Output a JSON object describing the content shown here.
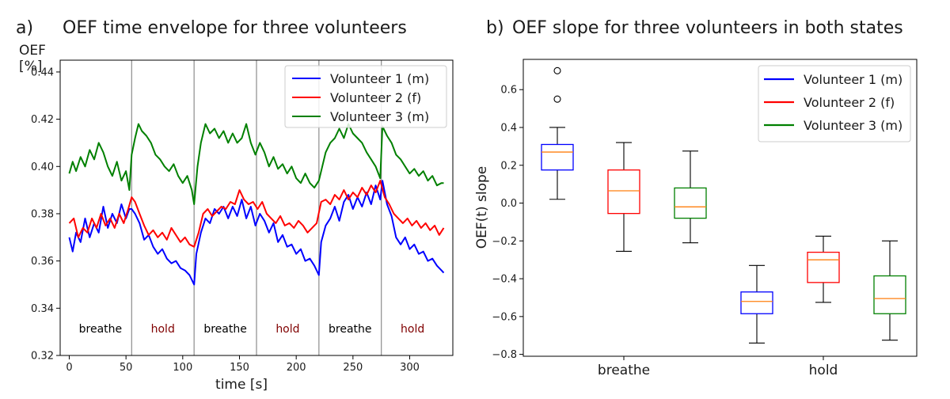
{
  "chart_data": [
    {
      "type": "line",
      "panel_label": "a)",
      "title": "OEF time envelope for three volunteers",
      "xlabel": "time [s]",
      "ylabel": [
        "OEF",
        "[%]"
      ],
      "xlim": [
        -8,
        338
      ],
      "ylim": [
        0.32,
        0.445
      ],
      "xticks": [
        0,
        50,
        100,
        150,
        200,
        250,
        300
      ],
      "yticks": [
        "0.32",
        "0.34",
        "0.36",
        "0.38",
        "0.40",
        "0.42",
        "0.44"
      ],
      "legend_position": "top-right",
      "phase_boundaries": [
        55,
        110,
        165,
        220,
        275
      ],
      "phases": [
        {
          "label": "breathe",
          "x": 27.5,
          "color": "#000000"
        },
        {
          "label": "hold",
          "x": 82.5,
          "color": "#800000"
        },
        {
          "label": "breathe",
          "x": 137.5,
          "color": "#000000"
        },
        {
          "label": "hold",
          "x": 192.5,
          "color": "#800000"
        },
        {
          "label": "breathe",
          "x": 247.5,
          "color": "#000000"
        },
        {
          "label": "hold",
          "x": 302.5,
          "color": "#800000"
        }
      ],
      "series": [
        {
          "name": "Volunteer 1 (m)",
          "color": "#0000ff",
          "x": [
            0,
            3,
            6,
            10,
            14,
            18,
            22,
            26,
            30,
            34,
            38,
            42,
            46,
            50,
            53,
            55,
            58,
            62,
            66,
            70,
            74,
            78,
            82,
            86,
            90,
            94,
            98,
            102,
            106,
            110,
            112,
            116,
            120,
            124,
            128,
            132,
            136,
            140,
            144,
            148,
            152,
            156,
            160,
            164,
            168,
            172,
            176,
            180,
            184,
            188,
            192,
            196,
            200,
            204,
            208,
            212,
            216,
            220,
            222,
            226,
            230,
            234,
            238,
            242,
            246,
            250,
            254,
            258,
            262,
            266,
            270,
            274,
            276,
            280,
            284,
            288,
            292,
            296,
            300,
            304,
            308,
            312,
            316,
            320,
            324,
            328,
            330
          ],
          "y": [
            0.37,
            0.364,
            0.372,
            0.368,
            0.378,
            0.37,
            0.376,
            0.372,
            0.383,
            0.374,
            0.38,
            0.376,
            0.384,
            0.378,
            0.382,
            0.382,
            0.38,
            0.376,
            0.369,
            0.371,
            0.366,
            0.363,
            0.365,
            0.361,
            0.359,
            0.36,
            0.357,
            0.356,
            0.354,
            0.35,
            0.363,
            0.372,
            0.378,
            0.376,
            0.382,
            0.38,
            0.383,
            0.378,
            0.383,
            0.379,
            0.386,
            0.378,
            0.383,
            0.375,
            0.38,
            0.377,
            0.372,
            0.376,
            0.368,
            0.371,
            0.366,
            0.367,
            0.363,
            0.365,
            0.36,
            0.361,
            0.358,
            0.354,
            0.368,
            0.375,
            0.378,
            0.383,
            0.377,
            0.385,
            0.388,
            0.382,
            0.387,
            0.383,
            0.389,
            0.384,
            0.392,
            0.386,
            0.394,
            0.384,
            0.379,
            0.37,
            0.367,
            0.37,
            0.365,
            0.367,
            0.363,
            0.364,
            0.36,
            0.361,
            0.358,
            0.356,
            0.355
          ]
        },
        {
          "name": "Volunteer 2 (f)",
          "color": "#ff0000",
          "x": [
            0,
            4,
            8,
            12,
            16,
            20,
            24,
            28,
            32,
            36,
            40,
            44,
            48,
            52,
            55,
            58,
            62,
            66,
            70,
            74,
            78,
            82,
            86,
            90,
            94,
            98,
            102,
            106,
            110,
            114,
            118,
            122,
            126,
            130,
            134,
            138,
            142,
            146,
            150,
            154,
            158,
            162,
            166,
            170,
            174,
            178,
            182,
            186,
            190,
            194,
            198,
            202,
            206,
            210,
            214,
            218,
            222,
            226,
            230,
            234,
            238,
            242,
            246,
            250,
            254,
            258,
            262,
            266,
            270,
            274,
            278,
            282,
            286,
            290,
            294,
            298,
            302,
            306,
            310,
            314,
            318,
            322,
            326,
            330
          ],
          "y": [
            0.376,
            0.378,
            0.37,
            0.374,
            0.372,
            0.378,
            0.374,
            0.38,
            0.375,
            0.378,
            0.374,
            0.38,
            0.376,
            0.382,
            0.387,
            0.385,
            0.38,
            0.375,
            0.371,
            0.373,
            0.37,
            0.372,
            0.369,
            0.374,
            0.371,
            0.368,
            0.37,
            0.367,
            0.366,
            0.372,
            0.38,
            0.382,
            0.379,
            0.381,
            0.383,
            0.382,
            0.385,
            0.384,
            0.39,
            0.386,
            0.384,
            0.385,
            0.382,
            0.385,
            0.38,
            0.378,
            0.376,
            0.379,
            0.375,
            0.376,
            0.374,
            0.377,
            0.375,
            0.372,
            0.374,
            0.376,
            0.385,
            0.386,
            0.384,
            0.388,
            0.386,
            0.39,
            0.386,
            0.389,
            0.387,
            0.391,
            0.388,
            0.392,
            0.389,
            0.394,
            0.387,
            0.384,
            0.38,
            0.378,
            0.376,
            0.378,
            0.375,
            0.377,
            0.374,
            0.376,
            0.373,
            0.375,
            0.371,
            0.374
          ]
        },
        {
          "name": "Volunteer 3 (m)",
          "color": "#008000",
          "x": [
            0,
            3,
            6,
            10,
            14,
            18,
            22,
            26,
            30,
            34,
            38,
            42,
            46,
            50,
            53,
            55,
            58,
            61,
            64,
            68,
            72,
            76,
            80,
            84,
            88,
            92,
            96,
            100,
            104,
            108,
            110,
            113,
            116,
            120,
            124,
            128,
            132,
            136,
            140,
            144,
            148,
            152,
            156,
            160,
            164,
            168,
            172,
            176,
            180,
            184,
            188,
            192,
            196,
            200,
            204,
            208,
            212,
            216,
            220,
            223,
            226,
            230,
            234,
            238,
            242,
            246,
            250,
            254,
            258,
            262,
            266,
            270,
            274,
            276,
            280,
            284,
            288,
            292,
            296,
            300,
            304,
            308,
            312,
            316,
            320,
            324,
            328,
            330
          ],
          "y": [
            0.397,
            0.402,
            0.398,
            0.404,
            0.4,
            0.407,
            0.403,
            0.41,
            0.406,
            0.4,
            0.396,
            0.402,
            0.394,
            0.398,
            0.39,
            0.405,
            0.412,
            0.418,
            0.415,
            0.413,
            0.41,
            0.405,
            0.403,
            0.4,
            0.398,
            0.401,
            0.396,
            0.393,
            0.396,
            0.39,
            0.384,
            0.4,
            0.41,
            0.418,
            0.414,
            0.416,
            0.412,
            0.415,
            0.41,
            0.414,
            0.41,
            0.412,
            0.418,
            0.41,
            0.405,
            0.41,
            0.406,
            0.4,
            0.404,
            0.399,
            0.401,
            0.397,
            0.4,
            0.395,
            0.393,
            0.397,
            0.393,
            0.391,
            0.394,
            0.4,
            0.406,
            0.41,
            0.412,
            0.416,
            0.412,
            0.418,
            0.414,
            0.412,
            0.41,
            0.406,
            0.403,
            0.4,
            0.395,
            0.417,
            0.413,
            0.41,
            0.405,
            0.403,
            0.4,
            0.397,
            0.399,
            0.396,
            0.398,
            0.394,
            0.396,
            0.392,
            0.393,
            0.393
          ]
        }
      ]
    },
    {
      "type": "box",
      "panel_label": "b)",
      "title": "OEF slope for three volunteers in both states",
      "ylabel": "OEF(t) slope",
      "ylim": [
        -0.81,
        0.76
      ],
      "yticks": [
        "0.6",
        "0.4",
        "0.2",
        "0.0",
        "−0.2",
        "−0.4",
        "−0.6",
        "−0.8"
      ],
      "median_color": "#ff7f0e",
      "legend_position": "top-right",
      "groups": [
        {
          "label": "breathe",
          "color": "#000000"
        },
        {
          "label": "hold",
          "color": "#800000"
        }
      ],
      "boxes": [
        {
          "group": "breathe",
          "series": "Volunteer 1 (m)",
          "color": "#0000ff",
          "whislo": 0.02,
          "q1": 0.175,
          "median": 0.27,
          "q3": 0.31,
          "whishi": 0.4,
          "fliers": [
            0.55,
            0.7
          ]
        },
        {
          "group": "breathe",
          "series": "Volunteer 2 (f)",
          "color": "#ff0000",
          "whislo": -0.255,
          "q1": -0.055,
          "median": 0.065,
          "q3": 0.175,
          "whishi": 0.32,
          "fliers": []
        },
        {
          "group": "breathe",
          "series": "Volunteer 3 (m)",
          "color": "#008000",
          "whislo": -0.21,
          "q1": -0.08,
          "median": -0.02,
          "q3": 0.08,
          "whishi": 0.275,
          "fliers": []
        },
        {
          "group": "hold",
          "series": "Volunteer 1 (m)",
          "color": "#0000ff",
          "whislo": -0.74,
          "q1": -0.585,
          "median": -0.52,
          "q3": -0.47,
          "whishi": -0.33,
          "fliers": []
        },
        {
          "group": "hold",
          "series": "Volunteer 2 (f)",
          "color": "#ff0000",
          "whislo": -0.525,
          "q1": -0.42,
          "median": -0.3,
          "q3": -0.26,
          "whishi": -0.175,
          "fliers": []
        },
        {
          "group": "hold",
          "series": "Volunteer 3 (m)",
          "color": "#008000",
          "whislo": -0.725,
          "q1": -0.585,
          "median": -0.505,
          "q3": -0.385,
          "whishi": -0.2,
          "fliers": []
        }
      ],
      "legend": [
        {
          "name": "Volunteer 1 (m)",
          "color": "#0000ff"
        },
        {
          "name": "Volunteer 2 (f)",
          "color": "#ff0000"
        },
        {
          "name": "Volunteer 3 (m)",
          "color": "#008000"
        }
      ]
    }
  ]
}
